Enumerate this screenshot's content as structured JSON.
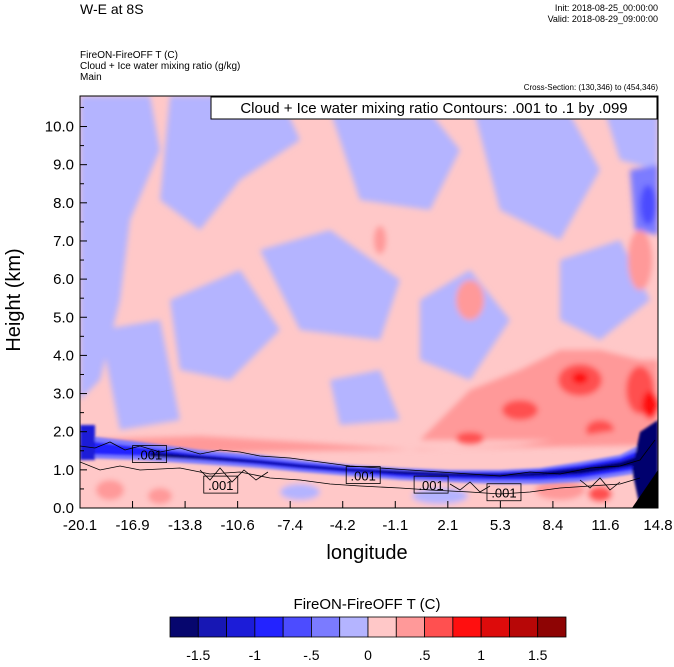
{
  "header": {
    "title": "W-E at 8S",
    "init": "Init: 2018-08-25_00:00:00",
    "valid": "Valid: 2018-08-29_09:00:00",
    "var_line1": "FireON-FireOFF T   (C)",
    "var_line2": "Cloud + Ice water mixing ratio   (g/kg)",
    "var_line3": "Main",
    "cross_section": "Cross-Section: (130,346) to (454,346)"
  },
  "chart_data": {
    "type": "heatmap",
    "contour_box": "Cloud + Ice water mixing ratio Contours: .001 to .1 by .099",
    "xlabel": "longitude",
    "ylabel": "Height (km)",
    "x_ticks": [
      "-20.1",
      "-16.9",
      "-13.8",
      "-10.6",
      "-7.4",
      "-4.2",
      "-1.1",
      "2.1",
      "5.3",
      "8.4",
      "11.6",
      "14.8"
    ],
    "x_range": [
      -20.1,
      14.8
    ],
    "y_ticks": [
      "0.0",
      "1.0",
      "2.0",
      "3.0",
      "4.0",
      "5.0",
      "6.0",
      "7.0",
      "8.0",
      "9.0",
      "10.0"
    ],
    "y_range": [
      0,
      10.8
    ],
    "contour_labels": [
      {
        "text": ".001",
        "x": -15.9,
        "y": 1.4
      },
      {
        "text": ".001",
        "x": -11.6,
        "y": 0.6
      },
      {
        "text": ".001",
        "x": -3.0,
        "y": 0.85
      },
      {
        "text": ".001",
        "x": 1.1,
        "y": 0.6
      },
      {
        "text": ".001",
        "x": 5.5,
        "y": 0.4
      }
    ],
    "colorbar": {
      "title": "FireON-FireOFF T  (C)",
      "tick_labels": [
        "-1.5",
        "-1",
        "-.5",
        "0",
        ".5",
        "1",
        "1.5"
      ],
      "colors": [
        "#06066e",
        "#1717b4",
        "#1c1cd8",
        "#2323ff",
        "#4c4cff",
        "#7b7bff",
        "#b4b4ff",
        "#ffc8c8",
        "#ff9999",
        "#ff5050",
        "#ff0f0f",
        "#dd0b0b",
        "#b70707",
        "#8e0404"
      ]
    }
  }
}
